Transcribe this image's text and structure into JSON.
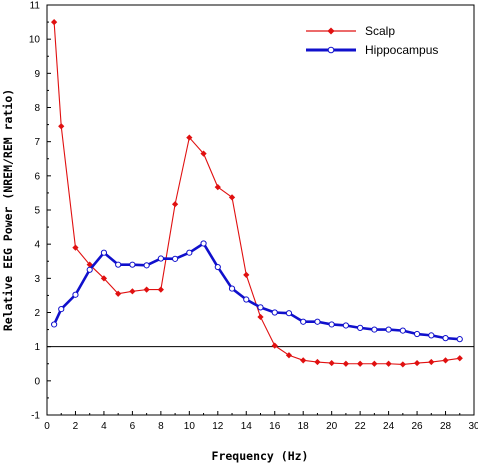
{
  "chart_data": {
    "type": "line",
    "xlabel": "Frequency (Hz)",
    "ylabel": "Relative EEG Power (NREM/REM ratio)",
    "xlim": [
      0,
      30
    ],
    "ylim": [
      -1,
      11
    ],
    "xticks": [
      0,
      2,
      4,
      6,
      8,
      10,
      12,
      14,
      16,
      18,
      20,
      22,
      24,
      26,
      28,
      30
    ],
    "yticks": [
      -1,
      0,
      1,
      2,
      3,
      4,
      5,
      6,
      7,
      8,
      9,
      10,
      11
    ],
    "reference_line": 1,
    "grid": false,
    "legend_position": "top-right",
    "series": [
      {
        "name": "Scalp",
        "color": "#e01010",
        "marker": "filled-diamond",
        "x": [
          0.5,
          1,
          2,
          3,
          4,
          5,
          6,
          7,
          8,
          9,
          10,
          11,
          12,
          13,
          14,
          15,
          16,
          17,
          18,
          19,
          20,
          21,
          22,
          23,
          24,
          25,
          26,
          27,
          28,
          29
        ],
        "y": [
          10.5,
          7.45,
          3.9,
          3.4,
          3.0,
          2.55,
          2.62,
          2.67,
          2.67,
          5.17,
          7.12,
          6.65,
          5.67,
          5.37,
          3.1,
          1.87,
          1.03,
          0.75,
          0.6,
          0.55,
          0.52,
          0.5,
          0.5,
          0.5,
          0.5,
          0.48,
          0.52,
          0.55,
          0.6,
          0.66
        ]
      },
      {
        "name": "Hippocampus",
        "color": "#1010cc",
        "marker": "open-circle",
        "x": [
          0.5,
          1,
          2,
          3,
          4,
          5,
          6,
          7,
          8,
          9,
          10,
          11,
          12,
          13,
          14,
          15,
          16,
          17,
          18,
          19,
          20,
          21,
          22,
          23,
          24,
          25,
          26,
          27,
          28,
          29
        ],
        "y": [
          1.65,
          2.1,
          2.52,
          3.25,
          3.75,
          3.4,
          3.4,
          3.38,
          3.58,
          3.57,
          3.75,
          4.02,
          3.33,
          2.7,
          2.38,
          2.15,
          2.0,
          1.98,
          1.73,
          1.73,
          1.65,
          1.62,
          1.55,
          1.5,
          1.5,
          1.47,
          1.37,
          1.33,
          1.25,
          1.22
        ]
      }
    ]
  }
}
